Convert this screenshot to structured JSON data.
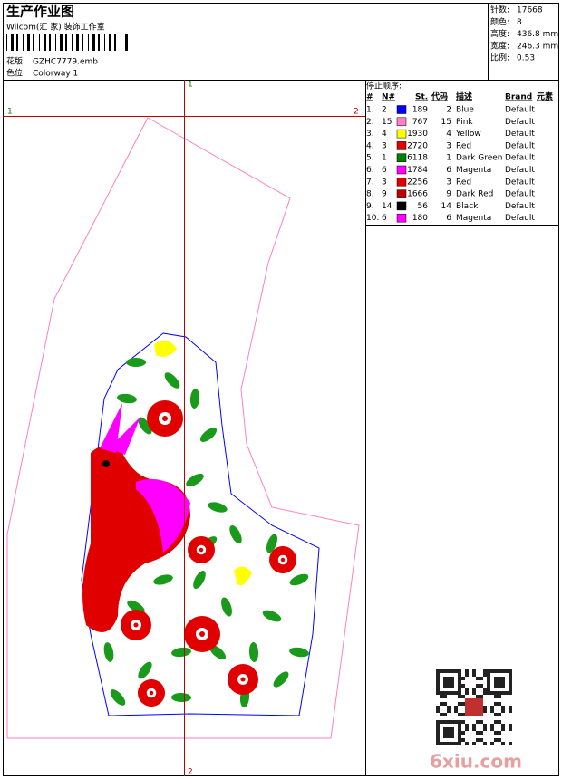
{
  "header": {
    "title": "生产作业图",
    "company": "Wilcom(汇 家) 装饰工作室",
    "design_label": "花版:",
    "design": "GZHC7779.emb",
    "colorway_label": "色位:",
    "colorway": "Colorway 1"
  },
  "info": [
    {
      "label": "针数:",
      "value": "17668"
    },
    {
      "label": "颜色:",
      "value": "8"
    },
    {
      "label": "高度:",
      "value": "436.8 mm"
    },
    {
      "label": "宽度:",
      "value": "246.3 mm"
    },
    {
      "label": "比例:",
      "value": "0.53"
    }
  ],
  "stop_sequence": {
    "title": "停止顺序:",
    "columns": [
      "#",
      "N#",
      "St.",
      "代码",
      "描述",
      "Brand",
      "元素"
    ],
    "rows": [
      {
        "index": "1.",
        "needle": 2,
        "stitches": 189,
        "code": 2,
        "color": "#0000ff",
        "description": "Blue",
        "brand": "Default"
      },
      {
        "index": "2.",
        "needle": 15,
        "stitches": 767,
        "code": 15,
        "color": "#ff80c0",
        "description": "Pink",
        "brand": "Default"
      },
      {
        "index": "3.",
        "needle": 4,
        "stitches": 1930,
        "code": 4,
        "color": "#ffff00",
        "description": "Yellow",
        "brand": "Default"
      },
      {
        "index": "4.",
        "needle": 3,
        "stitches": 2720,
        "code": 3,
        "color": "#e00000",
        "description": "Red",
        "brand": "Default"
      },
      {
        "index": "5.",
        "needle": 1,
        "stitches": 6118,
        "code": 1,
        "color": "#008000",
        "description": "Dark Green",
        "brand": "Default"
      },
      {
        "index": "6.",
        "needle": 6,
        "stitches": 1784,
        "code": 6,
        "color": "#ff00ff",
        "description": "Magenta",
        "brand": "Default"
      },
      {
        "index": "7.",
        "needle": 3,
        "stitches": 2256,
        "code": 3,
        "color": "#e00000",
        "description": "Red",
        "brand": "Default"
      },
      {
        "index": "8.",
        "needle": 9,
        "stitches": 1666,
        "code": 9,
        "color": "#c00000",
        "description": "Dark Red",
        "brand": "Default"
      },
      {
        "index": "9.",
        "needle": 14,
        "stitches": 56,
        "code": 14,
        "color": "#000000",
        "description": "Black",
        "brand": "Default"
      },
      {
        "index": "10.",
        "needle": 6,
        "stitches": 180,
        "code": 6,
        "color": "#ff00ff",
        "description": "Magenta",
        "brand": "Default"
      }
    ]
  },
  "guides": {
    "top": "1",
    "left": "1",
    "right": "2",
    "bottom": "2"
  },
  "watermark": "6xiu.com"
}
